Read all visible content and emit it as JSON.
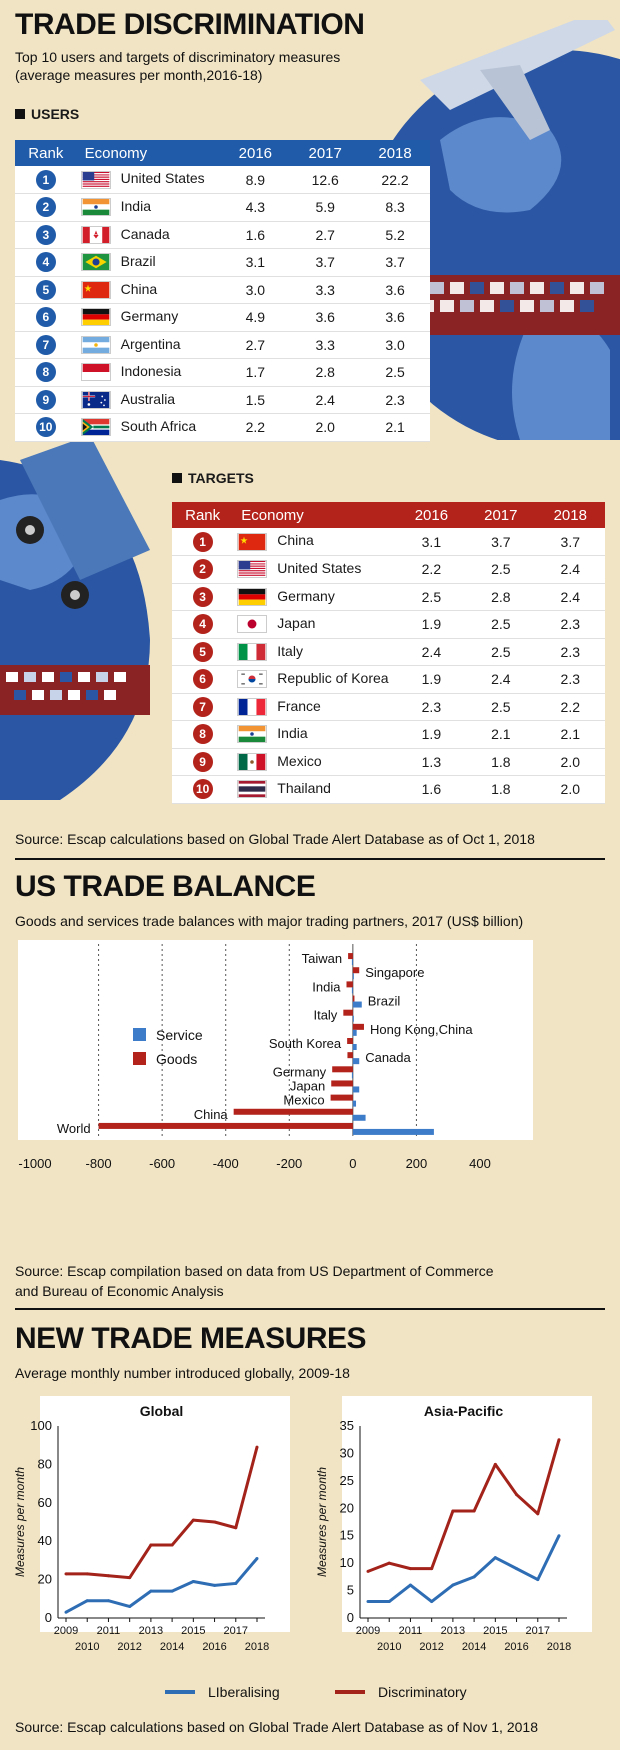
{
  "section1": {
    "title": "TRADE DISCRIMINATION",
    "subtitle_line1": "Top 10 users and targets of discriminatory measures",
    "subtitle_line2": "(average measures per month,2016-18)",
    "users_label": "USERS",
    "targets_label": "TARGETS",
    "columns": [
      "Rank",
      "Economy",
      "2016",
      "2017",
      "2018"
    ],
    "colors": {
      "users_header": "#1f5ba8",
      "users_badge": "#1f5ba8",
      "targets_header": "#b3231c",
      "targets_badge": "#b3231c"
    },
    "users": [
      {
        "rank": "1",
        "economy": "United States",
        "flag": "us-flag",
        "v2016": "8.9",
        "v2017": "12.6",
        "v2018": "22.2"
      },
      {
        "rank": "2",
        "economy": "India",
        "flag": "india-flag",
        "v2016": "4.3",
        "v2017": "5.9",
        "v2018": "8.3"
      },
      {
        "rank": "3",
        "economy": "Canada",
        "flag": "canada-flag",
        "v2016": "1.6",
        "v2017": "2.7",
        "v2018": "5.2"
      },
      {
        "rank": "4",
        "economy": "Brazil",
        "flag": "brazil-flag",
        "v2016": "3.1",
        "v2017": "3.7",
        "v2018": "3.7"
      },
      {
        "rank": "5",
        "economy": "China",
        "flag": "china-flag",
        "v2016": "3.0",
        "v2017": "3.3",
        "v2018": "3.6"
      },
      {
        "rank": "6",
        "economy": "Germany",
        "flag": "germany-flag",
        "v2016": "4.9",
        "v2017": "3.6",
        "v2018": "3.6"
      },
      {
        "rank": "7",
        "economy": "Argentina",
        "flag": "argentina-flag",
        "v2016": "2.7",
        "v2017": "3.3",
        "v2018": "3.0"
      },
      {
        "rank": "8",
        "economy": "Indonesia",
        "flag": "indonesia-flag",
        "v2016": "1.7",
        "v2017": "2.8",
        "v2018": "2.5"
      },
      {
        "rank": "9",
        "economy": "Australia",
        "flag": "australia-flag",
        "v2016": "1.5",
        "v2017": "2.4",
        "v2018": "2.3"
      },
      {
        "rank": "10",
        "economy": "South Africa",
        "flag": "south-africa-flag",
        "v2016": "2.2",
        "v2017": "2.0",
        "v2018": "2.1"
      }
    ],
    "targets": [
      {
        "rank": "1",
        "economy": "China",
        "flag": "china-flag",
        "v2016": "3.1",
        "v2017": "3.7",
        "v2018": "3.7"
      },
      {
        "rank": "2",
        "economy": "United States",
        "flag": "us-flag",
        "v2016": "2.2",
        "v2017": "2.5",
        "v2018": "2.4"
      },
      {
        "rank": "3",
        "economy": "Germany",
        "flag": "germany-flag",
        "v2016": "2.5",
        "v2017": "2.8",
        "v2018": "2.4"
      },
      {
        "rank": "4",
        "economy": "Japan",
        "flag": "japan-flag",
        "v2016": "1.9",
        "v2017": "2.5",
        "v2018": "2.3"
      },
      {
        "rank": "5",
        "economy": "Italy",
        "flag": "italy-flag",
        "v2016": "2.4",
        "v2017": "2.5",
        "v2018": "2.3"
      },
      {
        "rank": "6",
        "economy": "Republic of Korea",
        "flag": "korea-flag",
        "v2016": "1.9",
        "v2017": "2.4",
        "v2018": "2.3"
      },
      {
        "rank": "7",
        "economy": "France",
        "flag": "france-flag",
        "v2016": "2.3",
        "v2017": "2.5",
        "v2018": "2.2"
      },
      {
        "rank": "8",
        "economy": "India",
        "flag": "india-flag",
        "v2016": "1.9",
        "v2017": "2.1",
        "v2018": "2.1"
      },
      {
        "rank": "9",
        "economy": "Mexico",
        "flag": "mexico-flag",
        "v2016": "1.3",
        "v2017": "1.8",
        "v2018": "2.0"
      },
      {
        "rank": "10",
        "economy": "Thailand",
        "flag": "thailand-flag",
        "v2016": "1.6",
        "v2017": "1.8",
        "v2018": "2.0"
      }
    ],
    "source": "Source: Escap calculations based on Global Trade Alert Database as of Oct 1, 2018"
  },
  "section2": {
    "title": "US TRADE BALANCE",
    "subtitle": "Goods and services trade balances with major trading partners, 2017 (US$ billion)",
    "source_line1": "Source: Escap compilation based on data from US Department of Commerce",
    "source_line2": "and Bureau of Economic Analysis"
  },
  "section3": {
    "title": "NEW TRADE MEASURES",
    "subtitle": "Average monthly number introduced globally, 2009-18",
    "source": "Source: Escap calculations based on Global Trade Alert Database as of Nov 1, 2018"
  },
  "chart_data": [
    {
      "type": "bar",
      "orientation": "horizontal",
      "title": "US TRADE BALANCE",
      "subtitle": "Goods and services trade balances with major trading partners, 2017 (US$ billion)",
      "categories": [
        "Taiwan",
        "Singapore",
        "India",
        "Brazil",
        "Italy",
        "Hong Kong,China",
        "South Korea",
        "Canada",
        "Germany",
        "Japan",
        "Mexico",
        "China",
        "World"
      ],
      "series": [
        {
          "name": "Service",
          "color": "#3d7cc9",
          "values": [
            -3,
            3,
            -3,
            28,
            0,
            12,
            12,
            20,
            -3,
            20,
            10,
            40,
            255
          ]
        },
        {
          "name": "Goods",
          "color": "#b3231c",
          "values": [
            -15,
            20,
            -20,
            5,
            -30,
            35,
            -18,
            -17,
            -65,
            -68,
            -70,
            -375,
            -800
          ]
        }
      ],
      "xlim": [
        -1000,
        400
      ],
      "xticks": [
        "-1000",
        "-800",
        "-600",
        "-400",
        "-200",
        "0",
        "200",
        "400"
      ],
      "legend": "left",
      "grid": "vertical dotted"
    },
    {
      "type": "line",
      "title": "Global",
      "ylabel": "Measures per month",
      "x": [
        "2009",
        "2010",
        "2011",
        "2012",
        "2013",
        "2014",
        "2015",
        "2016",
        "2017",
        "2018"
      ],
      "ylim": [
        0,
        100
      ],
      "yticks": [
        "0",
        "20",
        "40",
        "60",
        "80",
        "100"
      ],
      "series": [
        {
          "name": "LIberalising",
          "color": "#2e6db4",
          "values": [
            3,
            9,
            9,
            6,
            14,
            14,
            19,
            17,
            18,
            31
          ]
        },
        {
          "name": "Discriminatory",
          "color": "#a3221a",
          "values": [
            23,
            23,
            22,
            21,
            38,
            38,
            51,
            50,
            47,
            89
          ]
        }
      ]
    },
    {
      "type": "line",
      "title": "Asia-Pacific",
      "ylabel": "Measures per month",
      "x": [
        "2009",
        "2010",
        "2011",
        "2012",
        "2013",
        "2014",
        "2015",
        "2016",
        "2017",
        "2018"
      ],
      "ylim": [
        0,
        35
      ],
      "yticks": [
        "0",
        "5",
        "10",
        "15",
        "20",
        "25",
        "30",
        "35"
      ],
      "series": [
        {
          "name": "LIberalising",
          "color": "#2e6db4",
          "values": [
            3,
            3,
            6,
            3,
            6,
            7.5,
            11,
            9,
            7,
            15
          ]
        },
        {
          "name": "Discriminatory",
          "color": "#a3221a",
          "values": [
            8.5,
            10,
            9,
            9,
            19.5,
            19.5,
            28,
            22.5,
            19,
            32.5
          ]
        }
      ]
    }
  ]
}
